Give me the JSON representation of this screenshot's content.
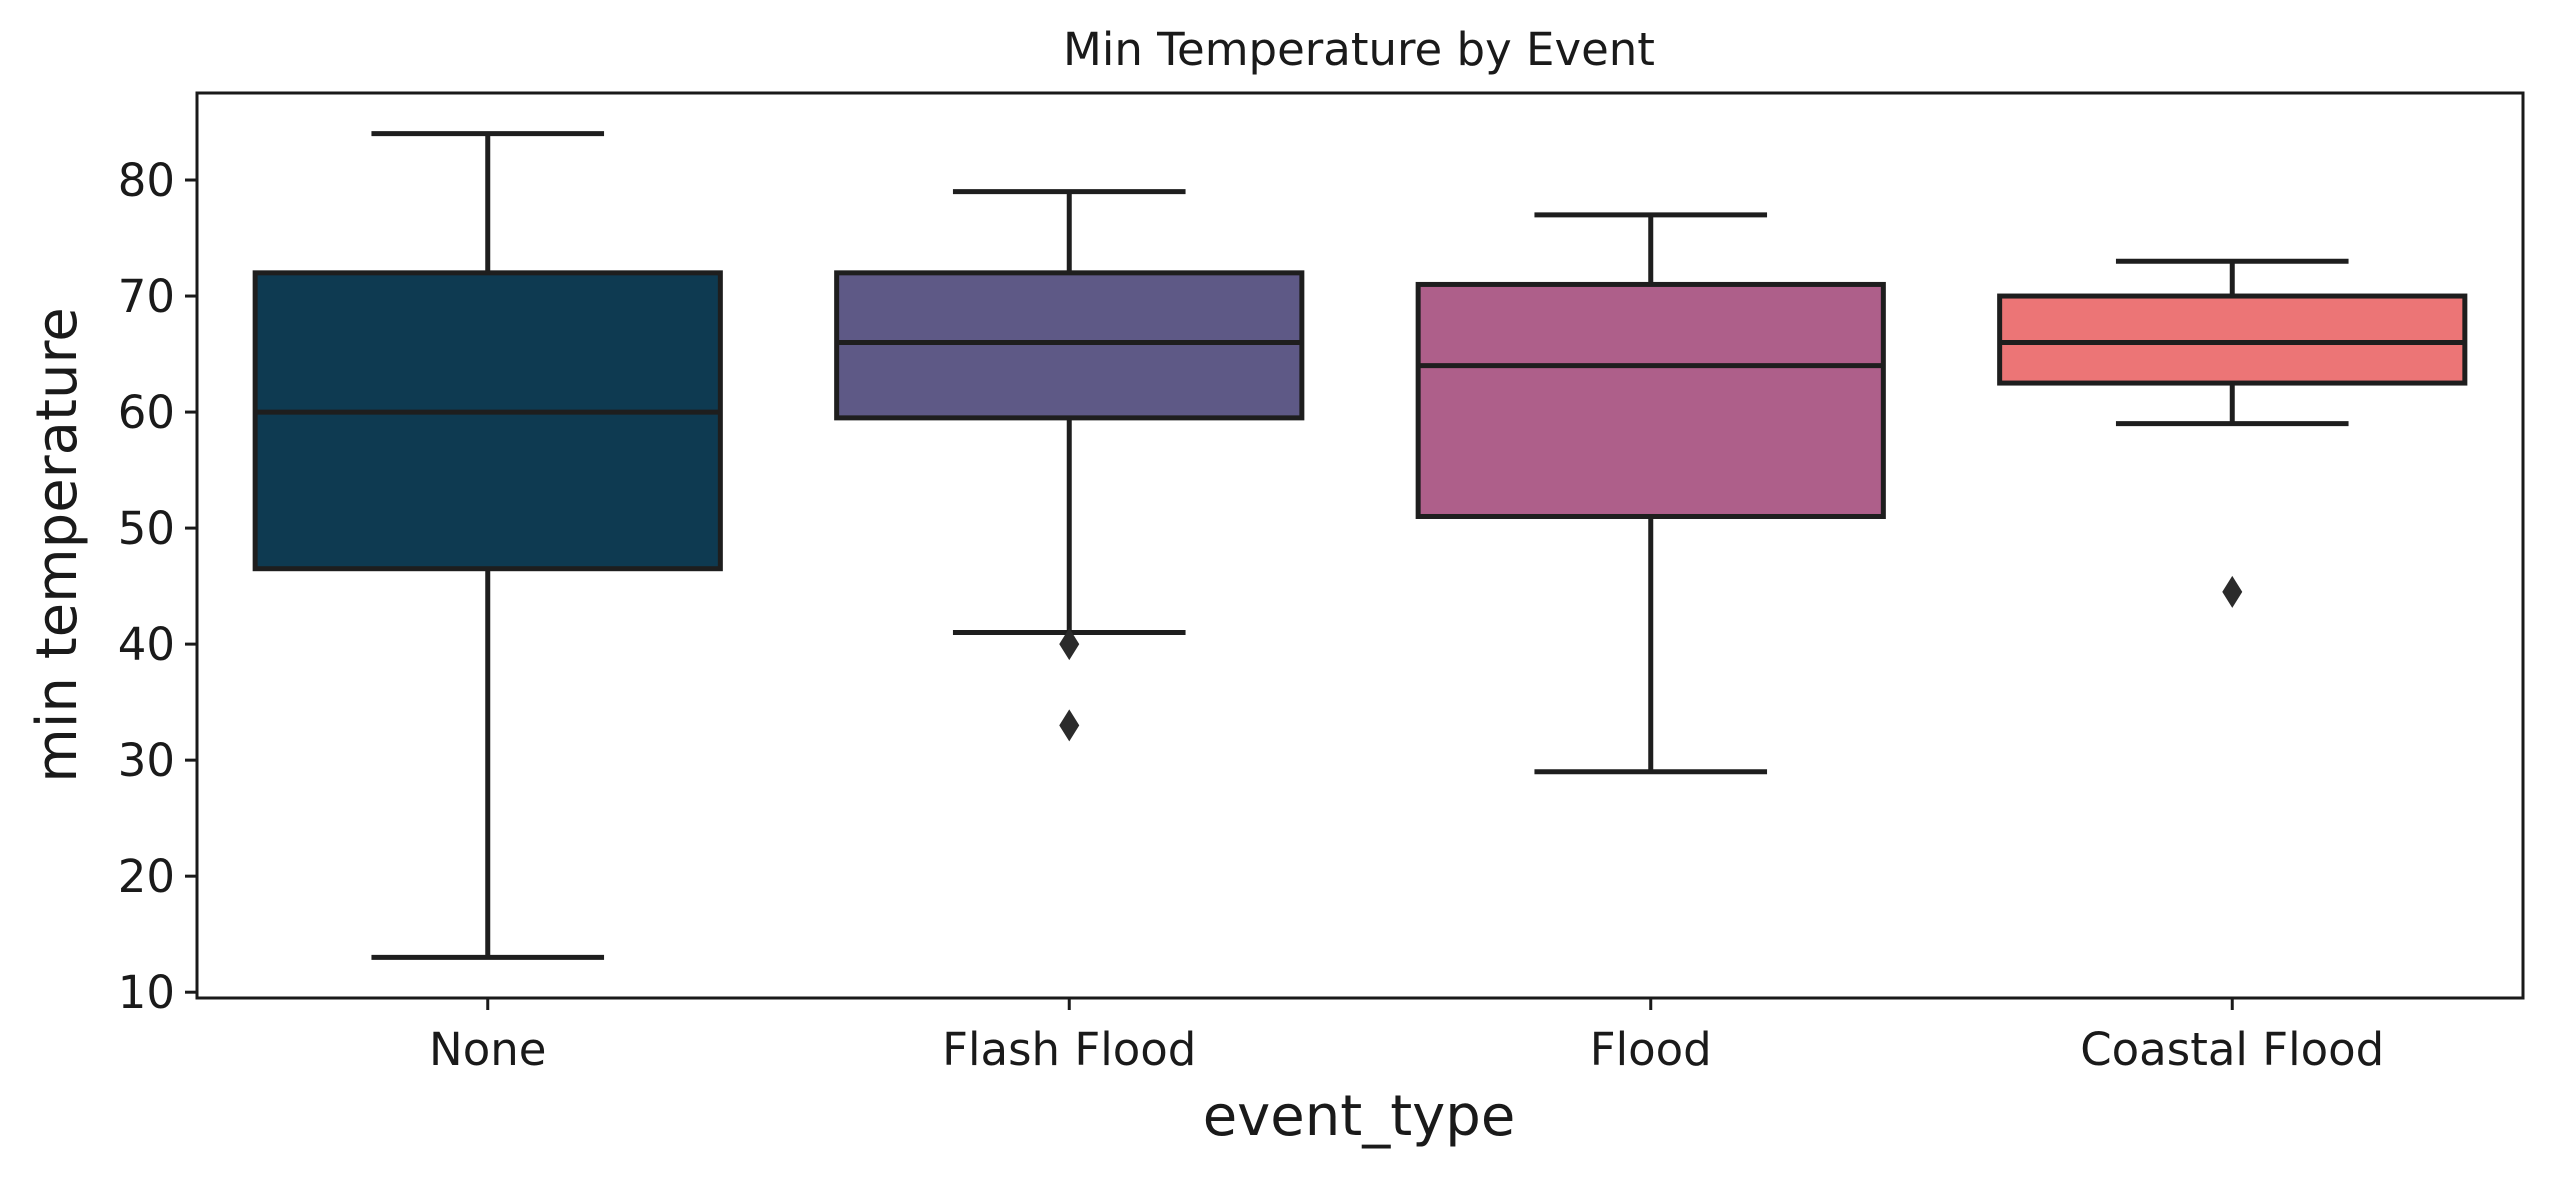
{
  "chart_data": {
    "type": "box",
    "title": "Min Temperature by Event",
    "xlabel": "event_type",
    "ylabel": "min temperature",
    "ylim": [
      9.5,
      87.5
    ],
    "yticks": [
      10,
      20,
      30,
      40,
      50,
      60,
      70,
      80
    ],
    "grid": false,
    "categories": [
      "None",
      "Flash Flood",
      "Flood",
      "Coastal Flood"
    ],
    "boxes": [
      {
        "category": "None",
        "whisker_low": 13,
        "q1": 46.5,
        "median": 60,
        "q3": 72,
        "whisker_high": 84,
        "outliers": [],
        "color": "#0e3a51"
      },
      {
        "category": "Flash Flood",
        "whisker_low": 41,
        "q1": 59.5,
        "median": 66,
        "q3": 72,
        "whisker_high": 79,
        "outliers": [
          40,
          33
        ],
        "color": "#5e5986"
      },
      {
        "category": "Flood",
        "whisker_low": 29,
        "q1": 51,
        "median": 64,
        "q3": 71,
        "whisker_high": 77,
        "outliers": [],
        "color": "#ae5f8a"
      },
      {
        "category": "Coastal Flood",
        "whisker_low": 59,
        "q1": 62.5,
        "median": 66,
        "q3": 70,
        "whisker_high": 73,
        "outliers": [
          44.5
        ],
        "color": "#ec7576"
      }
    ]
  }
}
